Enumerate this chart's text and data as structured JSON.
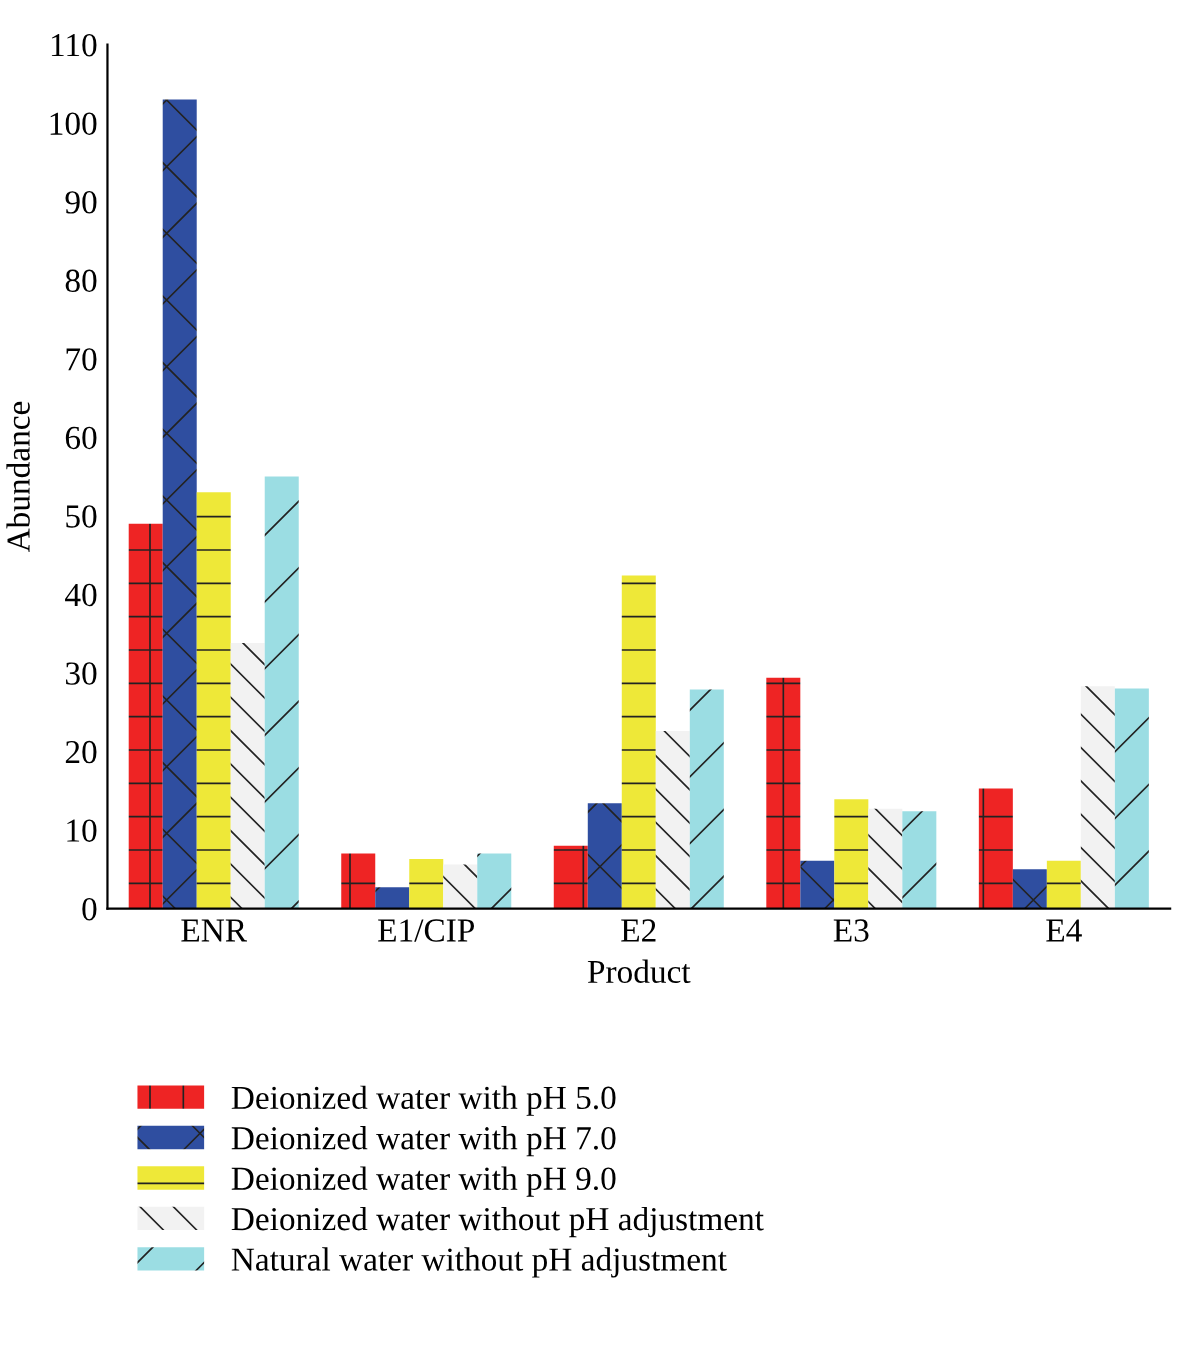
{
  "chart_data": {
    "type": "bar",
    "xlabel": "Product",
    "ylabel": "Abundance",
    "categories": [
      "ENR",
      "E1/CIP",
      "E2",
      "E3",
      "E4"
    ],
    "series": [
      {
        "name": "Deionized water with pH 5.0",
        "color": "#ee2424",
        "values": [
          49,
          7,
          8,
          29.4,
          15.3
        ]
      },
      {
        "name": "Deionized water with pH 7.0",
        "color": "#2f4ea0",
        "values": [
          103,
          2.7,
          13.4,
          6.1,
          5
        ]
      },
      {
        "name": "Deionized water with pH 9.0",
        "color": "#eee838",
        "values": [
          53,
          6.3,
          42.4,
          13.9,
          6.1
        ]
      },
      {
        "name": "Deionized water without pH adjustment",
        "color": "#f2f2f2",
        "values": [
          33.8,
          5.6,
          22.6,
          12.7,
          28.3
        ]
      },
      {
        "name": "Natural water without pH adjustment",
        "color": "#9bdde3",
        "values": [
          55,
          7,
          27.9,
          12.4,
          28
        ]
      }
    ],
    "ylim": [
      0,
      110
    ],
    "yticks": [
      0,
      10,
      20,
      30,
      40,
      50,
      60,
      70,
      80,
      90,
      100,
      110
    ],
    "grid": false,
    "legend": "bottom"
  }
}
